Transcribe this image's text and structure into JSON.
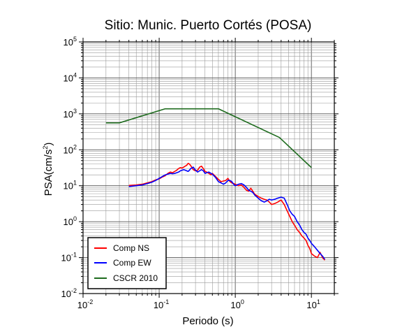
{
  "chart_data": {
    "type": "line",
    "title": "Sitio: Munic. Puerto Cortés (POSA)",
    "xlabel": "Periodo (s)",
    "ylabel_main": "PSA(cm/s",
    "ylabel_sup": "2",
    "ylabel_tail": ")",
    "x_scale": "log",
    "y_scale": "log",
    "xlim": [
      0.01,
      20
    ],
    "ylim": [
      0.01,
      100000
    ],
    "grid": true,
    "legend_position": "bottom-left",
    "x_ticks": [
      {
        "value": 0.01,
        "base": "10",
        "exp": "-2"
      },
      {
        "value": 0.1,
        "base": "10",
        "exp": "-1"
      },
      {
        "value": 1,
        "base": "10",
        "exp": "0"
      },
      {
        "value": 10,
        "base": "10",
        "exp": "1"
      }
    ],
    "y_ticks": [
      {
        "value": 0.01,
        "base": "10",
        "exp": "-2"
      },
      {
        "value": 0.1,
        "base": "10",
        "exp": "-1"
      },
      {
        "value": 1,
        "base": "10",
        "exp": "0"
      },
      {
        "value": 10,
        "base": "10",
        "exp": "1"
      },
      {
        "value": 100,
        "base": "10",
        "exp": "2"
      },
      {
        "value": 1000,
        "base": "10",
        "exp": "3"
      },
      {
        "value": 10000,
        "base": "10",
        "exp": "4"
      },
      {
        "value": 100000,
        "base": "10",
        "exp": "5"
      }
    ],
    "series": [
      {
        "name": "Comp NS",
        "color": "#ff0000",
        "x": [
          0.04,
          0.05,
          0.06,
          0.07,
          0.08,
          0.09,
          0.1,
          0.11,
          0.12,
          0.13,
          0.14,
          0.15,
          0.16,
          0.17,
          0.18,
          0.19,
          0.2,
          0.21,
          0.22,
          0.23,
          0.24,
          0.25,
          0.26,
          0.28,
          0.3,
          0.32,
          0.34,
          0.36,
          0.38,
          0.4,
          0.42,
          0.45,
          0.48,
          0.5,
          0.55,
          0.6,
          0.65,
          0.7,
          0.75,
          0.8,
          0.85,
          0.9,
          0.95,
          1.0,
          1.1,
          1.2,
          1.3,
          1.4,
          1.5,
          1.6,
          1.7,
          1.8,
          2.0,
          2.2,
          2.4,
          2.6,
          2.8,
          3.0,
          3.3,
          3.6,
          4.0,
          4.4,
          4.8,
          5.2,
          5.6,
          6.0,
          6.5,
          7.0,
          7.5,
          8.0,
          8.5,
          9.0,
          9.5,
          10.0,
          11.0,
          12.0,
          13.0,
          14.0,
          15.0
        ],
        "y": [
          10.2,
          10.5,
          11.0,
          12.0,
          13.0,
          14.5,
          15.5,
          17.5,
          19.0,
          22.0,
          24.0,
          23.0,
          25.0,
          27.0,
          30.0,
          32.0,
          31.0,
          33.0,
          35.0,
          37.0,
          42.0,
          40.0,
          36.0,
          28.0,
          26.0,
          27.0,
          33.0,
          35.0,
          30.0,
          25.0,
          24.0,
          22.0,
          20.0,
          22.0,
          18.0,
          15.0,
          13.0,
          13.5,
          14.0,
          16.0,
          13.0,
          12.0,
          11.5,
          11.0,
          10.0,
          10.5,
          9.0,
          7.5,
          7.0,
          8.5,
          7.0,
          5.8,
          5.0,
          4.5,
          4.2,
          4.0,
          3.5,
          3.0,
          3.2,
          3.5,
          4.0,
          3.0,
          2.0,
          1.4,
          1.0,
          0.8,
          0.6,
          0.5,
          0.4,
          0.35,
          0.3,
          0.22,
          0.18,
          0.13,
          0.11,
          0.1,
          0.14,
          0.1,
          0.085
        ]
      },
      {
        "name": "Comp EW",
        "color": "#0000ff",
        "x": [
          0.04,
          0.05,
          0.06,
          0.07,
          0.08,
          0.09,
          0.1,
          0.11,
          0.12,
          0.13,
          0.14,
          0.15,
          0.16,
          0.17,
          0.18,
          0.19,
          0.2,
          0.21,
          0.22,
          0.23,
          0.24,
          0.25,
          0.26,
          0.28,
          0.3,
          0.32,
          0.34,
          0.36,
          0.38,
          0.4,
          0.42,
          0.45,
          0.48,
          0.5,
          0.55,
          0.6,
          0.65,
          0.7,
          0.75,
          0.8,
          0.85,
          0.9,
          0.95,
          1.0,
          1.1,
          1.2,
          1.3,
          1.4,
          1.5,
          1.6,
          1.7,
          1.8,
          2.0,
          2.2,
          2.4,
          2.6,
          2.8,
          3.0,
          3.3,
          3.6,
          4.0,
          4.4,
          4.8,
          5.2,
          5.6,
          6.0,
          6.5,
          7.0,
          7.5,
          8.0,
          8.5,
          9.0,
          9.5,
          10.0,
          11.0,
          12.0,
          13.0,
          14.0,
          15.0
        ],
        "y": [
          9.5,
          10.0,
          10.5,
          11.5,
          12.5,
          14.0,
          16.0,
          18.0,
          20.0,
          21.0,
          22.0,
          21.5,
          22.0,
          23.0,
          24.0,
          26.0,
          27.0,
          28.0,
          27.0,
          26.0,
          25.0,
          27.0,
          30.0,
          33.0,
          27.0,
          24.0,
          26.0,
          28.0,
          26.0,
          22.0,
          23.0,
          24.0,
          22.0,
          21.0,
          17.0,
          13.0,
          12.0,
          11.0,
          12.0,
          14.0,
          14.0,
          13.0,
          11.0,
          10.0,
          11.0,
          11.5,
          10.5,
          9.0,
          7.5,
          7.0,
          6.5,
          5.5,
          4.5,
          3.8,
          3.5,
          3.8,
          4.2,
          4.0,
          4.2,
          4.5,
          4.8,
          4.5,
          3.0,
          2.0,
          1.6,
          1.4,
          1.0,
          0.8,
          0.6,
          0.5,
          0.45,
          0.35,
          0.3,
          0.25,
          0.2,
          0.16,
          0.13,
          0.11,
          0.09
        ]
      },
      {
        "name": "CSCR 2010",
        "color": "#1e6b1e",
        "x": [
          0.02,
          0.03,
          0.12,
          0.6,
          3.8,
          10.0
        ],
        "y": [
          560,
          560,
          1380,
          1380,
          220,
          32
        ]
      }
    ]
  }
}
